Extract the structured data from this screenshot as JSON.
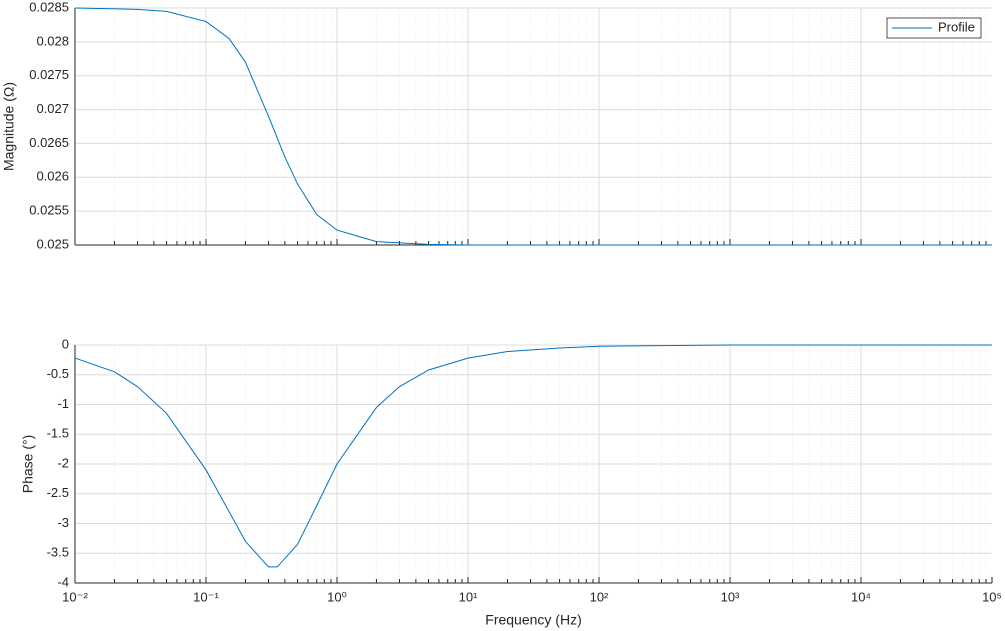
{
  "chart_data": [
    {
      "type": "line",
      "ylabel": "Magnitude (Ω)",
      "x": [
        0.01,
        0.03,
        0.05,
        0.1,
        0.15,
        0.2,
        0.3,
        0.4,
        0.5,
        0.7,
        1,
        2,
        5,
        10,
        100,
        1000,
        10000,
        100000
      ],
      "series": [
        {
          "name": "Profile",
          "color": "#0072bd",
          "values": [
            0.0285,
            0.02848,
            0.02845,
            0.0283,
            0.02805,
            0.0277,
            0.0269,
            0.0263,
            0.0259,
            0.02545,
            0.02522,
            0.02505,
            0.02501,
            0.025,
            0.025,
            0.025,
            0.025,
            0.025
          ]
        }
      ],
      "xlim": [
        0.01,
        100000
      ],
      "log_x": true,
      "ylim": [
        0.025,
        0.0285
      ],
      "yticks": [
        0.025,
        0.0255,
        0.026,
        0.0265,
        0.027,
        0.0275,
        0.028,
        0.0285
      ],
      "grid": true,
      "legend": "northeast"
    },
    {
      "type": "line",
      "ylabel": "Phase (°)",
      "xlabel": "Frequency (Hz)",
      "x": [
        0.01,
        0.02,
        0.03,
        0.05,
        0.1,
        0.15,
        0.2,
        0.3,
        0.35,
        0.5,
        0.7,
        1,
        2,
        3,
        5,
        10,
        20,
        50,
        100,
        1000,
        100000
      ],
      "series": [
        {
          "name": "Profile",
          "color": "#0072bd",
          "values": [
            -0.22,
            -0.45,
            -0.7,
            -1.15,
            -2.1,
            -2.8,
            -3.3,
            -3.73,
            -3.73,
            -3.35,
            -2.7,
            -2.0,
            -1.05,
            -0.7,
            -0.42,
            -0.22,
            -0.11,
            -0.05,
            -0.02,
            0,
            0
          ]
        }
      ],
      "xlim": [
        0.01,
        100000
      ],
      "log_x": true,
      "xticks": [
        {
          "value": 0.01,
          "label": "10⁻²"
        },
        {
          "value": 0.1,
          "label": "10⁻¹"
        },
        {
          "value": 1,
          "label": "10⁰"
        },
        {
          "value": 10,
          "label": "10¹"
        },
        {
          "value": 100,
          "label": "10²"
        },
        {
          "value": 1000,
          "label": "10³"
        },
        {
          "value": 10000,
          "label": "10⁴"
        },
        {
          "value": 100000,
          "label": "10⁵"
        }
      ],
      "ylim": [
        -4,
        0
      ],
      "yticks": [
        0,
        -0.5,
        -1,
        -1.5,
        -2,
        -2.5,
        -3,
        -3.5,
        -4
      ],
      "grid": true
    }
  ]
}
